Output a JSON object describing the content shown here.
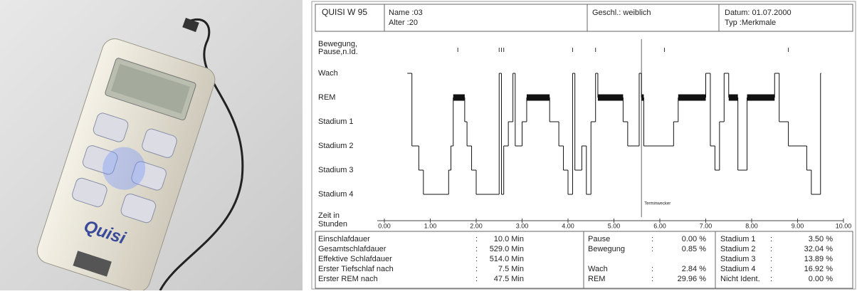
{
  "photo": {
    "brand_label": "Quisi"
  },
  "header": {
    "device": "QUISI W 95",
    "name": "Name :03",
    "age": "Alter   :20",
    "sex": "Geschl.: weiblich",
    "date": "Datum: 01.07.2000",
    "kind": "Typ    :Merkmale"
  },
  "chart_data": {
    "type": "step",
    "y_categories": [
      "Wach",
      "REM",
      "Stadium 1",
      "Stadium 2",
      "Stadium 3",
      "Stadium 4"
    ],
    "event_label": [
      "Bewegung,",
      "Pause,n.Id."
    ],
    "events_x": [
      1.6,
      2.5,
      2.55,
      2.6,
      4.1,
      4.6,
      6.1,
      8.8
    ],
    "x": [
      0.5,
      0.6,
      0.75,
      0.85,
      1.4,
      1.45,
      1.5,
      1.75,
      1.8,
      1.9,
      2.0,
      2.5,
      2.55,
      2.6,
      2.7,
      2.8,
      2.85,
      3.0,
      3.1,
      3.6,
      3.8,
      3.9,
      4.0,
      4.1,
      4.15,
      4.3,
      4.4,
      4.5,
      4.6,
      4.65,
      5.2,
      5.3,
      5.55,
      5.6,
      5.65,
      6.3,
      6.4,
      7.0,
      7.1,
      7.2,
      7.3,
      7.4,
      7.5,
      7.7,
      7.9,
      8.5,
      8.6,
      8.8,
      9.2,
      9.3,
      9.5
    ],
    "values": [
      "Wach",
      "Stadium 2",
      "Stadium 3",
      "Stadium 4",
      "Stadium 3",
      "Stadium 2",
      "REM",
      "Stadium 1",
      "Stadium 2",
      "Stadium 3",
      "Stadium 4",
      "Wach",
      "Stadium 4",
      "Stadium 2",
      "Stadium 1",
      "Wach",
      "Stadium 2",
      "Stadium 1",
      "REM",
      "Stadium 1",
      "Stadium 2",
      "Stadium 3",
      "Stadium 4",
      "Wach",
      "Stadium 3",
      "Stadium 2",
      "Stadium 4",
      "Stadium 1",
      "Wach",
      "REM",
      "Stadium 1",
      "Stadium 2",
      "Wach",
      "REM",
      "Stadium 2",
      "Stadium 1",
      "REM",
      "Wach",
      "Stadium 2",
      "Stadium 3",
      "Stadium 1",
      "Wach",
      "REM",
      "Stadium 3",
      "REM",
      "Wach",
      "Stadium 1",
      "Stadium 2",
      "Stadium 3",
      "Stadium 4",
      "Wach"
    ],
    "xlim": [
      0,
      10
    ],
    "xticks": [
      {
        "value": 0,
        "label": "0.00"
      },
      {
        "value": 1,
        "label": "1.00"
      },
      {
        "value": 2,
        "label": "2.00"
      },
      {
        "value": 3,
        "label": "3.00"
      },
      {
        "value": 4,
        "label": "4.00"
      },
      {
        "value": 5,
        "label": "5.00"
      },
      {
        "value": 6,
        "label": "6.00"
      },
      {
        "value": 7,
        "label": "7.00"
      },
      {
        "value": 8,
        "label": "8.00"
      },
      {
        "value": 9,
        "label": "9.00"
      },
      {
        "value": 10,
        "label": "10.00"
      }
    ],
    "x_label": [
      "Zeit in",
      "Stunden"
    ],
    "annotation": {
      "x": 5.6,
      "text": "Terminwecker"
    },
    "color": "#111"
  },
  "stats": {
    "separator": ":",
    "left": [
      [
        "Einschlafdauer",
        "10.0 Min"
      ],
      [
        "Gesamtschlafdauer",
        "529.0 Min"
      ],
      [
        "Effektive Schlafdauer",
        "514.0 Min"
      ],
      [
        "Erster Tiefschlaf nach",
        "7.5 Min"
      ],
      [
        "Erster REM nach",
        "47.5 Min"
      ]
    ],
    "middle": [
      [
        "Pause",
        "0.00 %"
      ],
      [
        "Bewegung",
        "0.85 %"
      ],
      null,
      [
        "Wach",
        "2.84 %"
      ],
      [
        "REM",
        "29.96 %"
      ]
    ],
    "right": [
      [
        "Stadium 1",
        "3.50 %"
      ],
      [
        "Stadium 2",
        "32.04 %"
      ],
      [
        "Stadium 3",
        "13.89 %"
      ],
      [
        "Stadium 4",
        "16.92 %"
      ],
      [
        "Nicht Ident.",
        "0.00 %"
      ]
    ]
  }
}
